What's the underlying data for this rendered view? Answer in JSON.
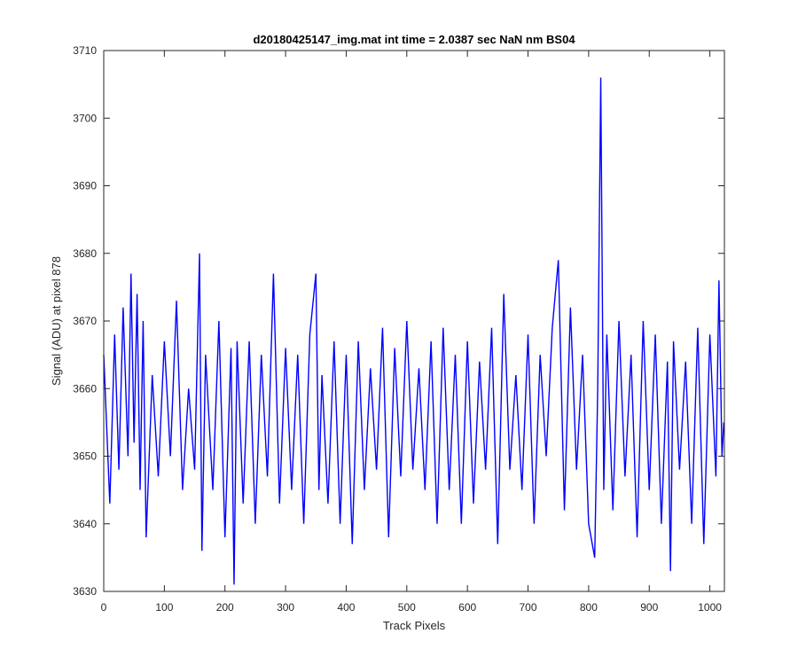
{
  "chart_data": {
    "type": "line",
    "title": "d20180425147_img.mat int time = 2.0387 sec  NaN nm BS04",
    "xlabel": "Track Pixels",
    "ylabel": "Signal (ADU) at pixel 878",
    "xlim": [
      0,
      1024
    ],
    "ylim": [
      3630,
      3710
    ],
    "xticks": [
      "0",
      "100",
      "200",
      "300",
      "400",
      "500",
      "600",
      "700",
      "800",
      "900",
      "1000"
    ],
    "yticks": [
      "3630",
      "3640",
      "3650",
      "3660",
      "3670",
      "3680",
      "3690",
      "3700",
      "3710"
    ],
    "xtick_values": [
      0,
      100,
      200,
      300,
      400,
      500,
      600,
      700,
      800,
      900,
      1000
    ],
    "ytick_values": [
      3630,
      3640,
      3650,
      3660,
      3670,
      3680,
      3690,
      3700,
      3710
    ],
    "grid": false,
    "box": true,
    "series": [
      {
        "color": "#0000ff",
        "x": [
          0,
          10,
          18,
          25,
          32,
          40,
          45,
          50,
          55,
          60,
          65,
          70,
          80,
          90,
          100,
          110,
          120,
          130,
          140,
          150,
          158,
          162,
          168,
          180,
          190,
          200,
          210,
          215,
          220,
          230,
          240,
          250,
          260,
          270,
          280,
          290,
          300,
          310,
          320,
          330,
          340,
          350,
          355,
          360,
          370,
          380,
          390,
          400,
          410,
          420,
          430,
          440,
          450,
          460,
          470,
          480,
          490,
          500,
          510,
          520,
          530,
          540,
          550,
          560,
          570,
          580,
          590,
          600,
          610,
          620,
          630,
          640,
          650,
          660,
          670,
          680,
          690,
          700,
          710,
          720,
          730,
          740,
          750,
          760,
          770,
          780,
          790,
          800,
          810,
          815,
          820,
          825,
          830,
          840,
          850,
          860,
          870,
          880,
          890,
          900,
          910,
          920,
          930,
          935,
          940,
          950,
          960,
          970,
          980,
          990,
          1000,
          1010,
          1015,
          1020,
          1023
        ],
        "y": [
          3665,
          3643,
          3668,
          3648,
          3672,
          3650,
          3677,
          3652,
          3674,
          3645,
          3670,
          3638,
          3662,
          3647,
          3667,
          3650,
          3673,
          3645,
          3660,
          3648,
          3680,
          3636,
          3665,
          3645,
          3670,
          3638,
          3666,
          3631,
          3667,
          3643,
          3667,
          3640,
          3665,
          3647,
          3677,
          3643,
          3666,
          3645,
          3665,
          3640,
          3668,
          3677,
          3645,
          3662,
          3643,
          3667,
          3640,
          3665,
          3637,
          3667,
          3645,
          3663,
          3648,
          3669,
          3638,
          3666,
          3647,
          3670,
          3648,
          3663,
          3645,
          3667,
          3640,
          3669,
          3645,
          3665,
          3640,
          3667,
          3643,
          3664,
          3648,
          3669,
          3637,
          3674,
          3648,
          3662,
          3645,
          3668,
          3640,
          3665,
          3650,
          3669,
          3679,
          3642,
          3672,
          3648,
          3665,
          3640,
          3635,
          3660,
          3706,
          3645,
          3668,
          3642,
          3670,
          3647,
          3665,
          3638,
          3670,
          3645,
          3668,
          3640,
          3664,
          3633,
          3667,
          3648,
          3664,
          3640,
          3669,
          3637,
          3668,
          3647,
          3676,
          3650,
          3655
        ]
      }
    ]
  }
}
